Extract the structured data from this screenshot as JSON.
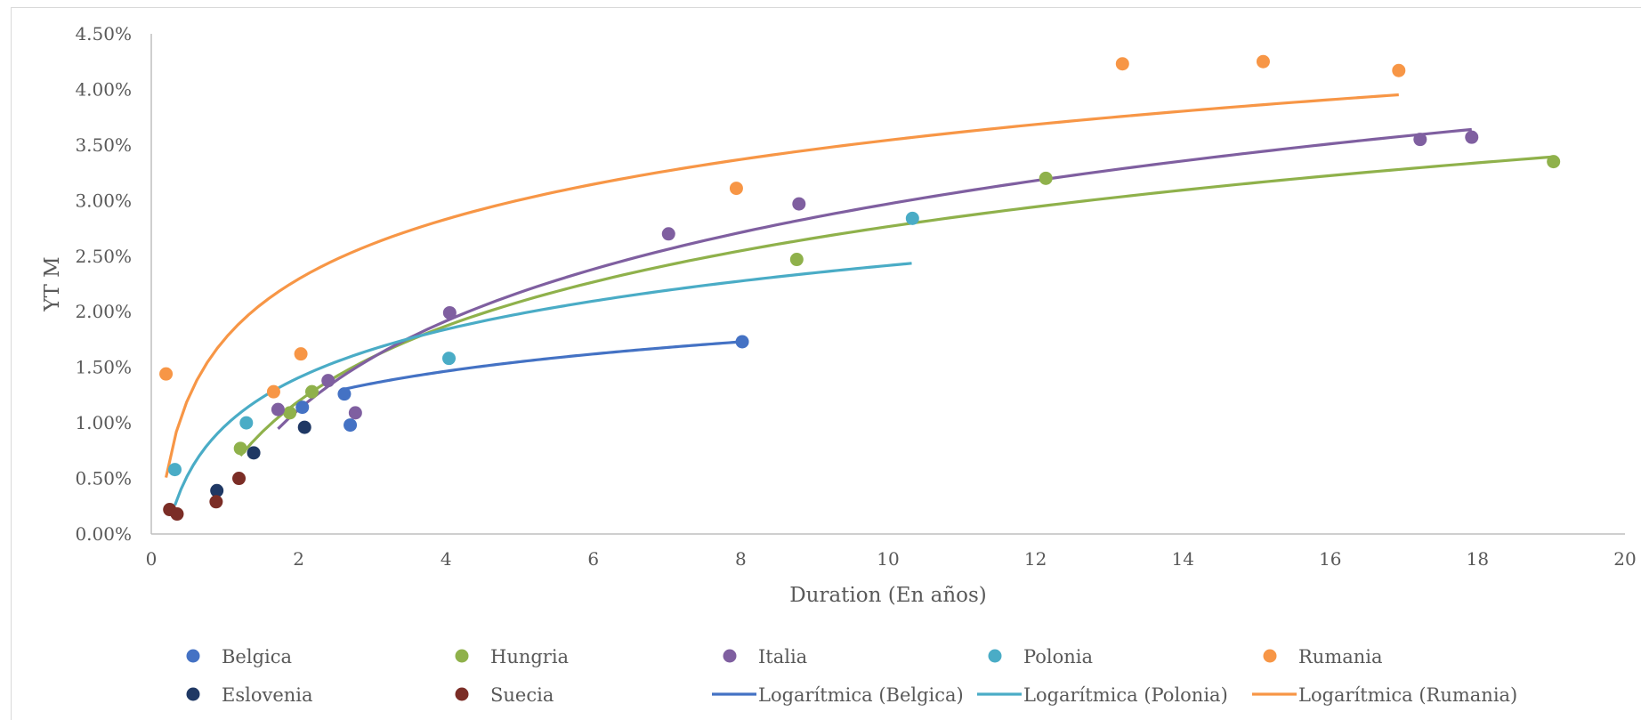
{
  "chart_data": {
    "type": "scatter",
    "title": "",
    "xlabel": "Duration (En años)",
    "ylabel": "YT M",
    "xlim": [
      0,
      20
    ],
    "ylim": [
      0,
      4.5
    ],
    "x_ticks": [
      0,
      2,
      4,
      6,
      8,
      10,
      12,
      14,
      16,
      18,
      20
    ],
    "x_tick_labels": [
      "0",
      "2",
      "4",
      "6",
      "8",
      "10",
      "12",
      "14",
      "16",
      "18",
      "20"
    ],
    "y_ticks": [
      0,
      0.5,
      1,
      1.5,
      2,
      2.5,
      3,
      3.5,
      4,
      4.5
    ],
    "y_tick_labels": [
      "0.00%",
      "0.50%",
      "1.00%",
      "1.50%",
      "2.00%",
      "2.50%",
      "3.00%",
      "3.50%",
      "4.00%",
      "4.50%"
    ],
    "grid": false,
    "legend_position": "bottom",
    "series": [
      {
        "name": "Belgica",
        "color": "#4472C4",
        "points": [
          [
            2.05,
            1.14
          ],
          [
            2.62,
            1.26
          ],
          [
            2.7,
            0.98
          ],
          [
            8.02,
            1.73
          ]
        ]
      },
      {
        "name": "Hungria",
        "color": "#8FB14B",
        "points": [
          [
            1.21,
            0.77
          ],
          [
            1.88,
            1.09
          ],
          [
            2.18,
            1.28
          ],
          [
            8.76,
            2.47
          ],
          [
            12.14,
            3.2
          ],
          [
            19.03,
            3.35
          ]
        ]
      },
      {
        "name": "Italia",
        "color": "#7F5FA0",
        "points": [
          [
            1.72,
            1.12
          ],
          [
            2.4,
            1.38
          ],
          [
            2.77,
            1.09
          ],
          [
            4.05,
            1.99
          ],
          [
            7.02,
            2.7
          ],
          [
            8.79,
            2.97
          ],
          [
            17.22,
            3.55
          ],
          [
            17.92,
            3.57
          ]
        ]
      },
      {
        "name": "Polonia",
        "color": "#4AACC6",
        "points": [
          [
            0.32,
            0.58
          ],
          [
            1.29,
            1.0
          ],
          [
            4.04,
            1.58
          ],
          [
            10.33,
            2.84
          ]
        ]
      },
      {
        "name": "Rumania",
        "color": "#F79646",
        "points": [
          [
            0.2,
            1.44
          ],
          [
            1.66,
            1.28
          ],
          [
            2.03,
            1.62
          ],
          [
            7.94,
            3.11
          ],
          [
            13.18,
            4.23
          ],
          [
            15.09,
            4.25
          ],
          [
            16.93,
            4.17
          ]
        ]
      },
      {
        "name": "Eslovenia",
        "color": "#1F3864",
        "points": [
          [
            0.89,
            0.39
          ],
          [
            1.39,
            0.73
          ],
          [
            2.08,
            0.96
          ]
        ]
      },
      {
        "name": "Suecia",
        "color": "#7B2D26",
        "points": [
          [
            0.25,
            0.22
          ],
          [
            0.35,
            0.18
          ],
          [
            0.88,
            0.29
          ],
          [
            1.19,
            0.5
          ]
        ]
      }
    ],
    "trendlines": [
      {
        "name": "Logarítmica (Belgica)",
        "color": "#4472C4",
        "x_range": [
          2.62,
          8.02
        ],
        "a": 0.3815,
        "b": 0.9356
      },
      {
        "name": "Logarítmica (Polonia)",
        "color": "#4AACC6",
        "x_range": [
          0.32,
          10.32
        ],
        "a": 0.627,
        "b": 0.972
      },
      {
        "name": "Logarítmica (Rumania)",
        "color": "#F79646",
        "x_range": [
          0.2,
          16.93
        ],
        "a": 0.7758,
        "b": 1.7566
      }
    ],
    "other_curves": [
      {
        "color": "#8FB14B",
        "x_range": [
          1.21,
          19.03
        ],
        "a": 0.9759,
        "b": 0.5185
      },
      {
        "color": "#7F5FA0",
        "x_range": [
          1.72,
          17.92
        ],
        "a": 1.1493,
        "b": 0.3232
      }
    ],
    "legend_rows": [
      [
        "Belgica",
        "Hungria",
        "Italia",
        "Polonia",
        "Rumania"
      ],
      [
        "Eslovenia",
        "Suecia",
        "Logarítmica (Belgica)",
        "Logarítmica (Polonia)",
        "Logarítmica (Rumania)"
      ]
    ]
  }
}
